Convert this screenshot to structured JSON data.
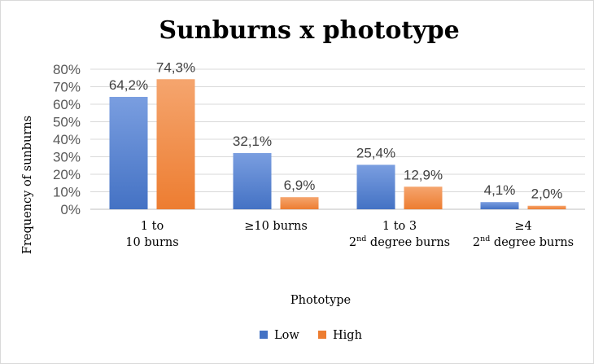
{
  "chart_data": {
    "type": "bar",
    "title": "Sunburns x phototype",
    "xlabel": "Phototype",
    "ylabel": "Frequency of sunburns",
    "ylim": [
      0,
      80
    ],
    "yticks": [
      "0%",
      "10%",
      "20%",
      "30%",
      "40%",
      "50%",
      "60%",
      "70%",
      "80%"
    ],
    "grid": true,
    "legend_position": "bottom",
    "categories": [
      {
        "lines": [
          {
            "text": "1 to"
          },
          {
            "text": "10 burns"
          }
        ]
      },
      {
        "lines": [
          {
            "text": "≥10 burns"
          }
        ]
      },
      {
        "lines": [
          {
            "text": "1 to 3"
          },
          {
            "text": "2",
            "sup": "nd",
            "rest": " degree burns"
          }
        ]
      },
      {
        "lines": [
          {
            "text": "≥4"
          },
          {
            "text": "2",
            "sup": "nd",
            "rest": " degree burns"
          }
        ]
      }
    ],
    "series": [
      {
        "name": "Low",
        "color": "#4472c4",
        "values": [
          64.2,
          32.1,
          25.4,
          4.1
        ],
        "labels": [
          "64,2%",
          "32,1%",
          "25,4%",
          "4,1%"
        ]
      },
      {
        "name": "High",
        "color": "#ed7d31",
        "values": [
          74.3,
          6.9,
          12.9,
          2.0
        ],
        "labels": [
          "74,3%",
          "6,9%",
          "12,9%",
          "2,0%"
        ]
      }
    ]
  }
}
